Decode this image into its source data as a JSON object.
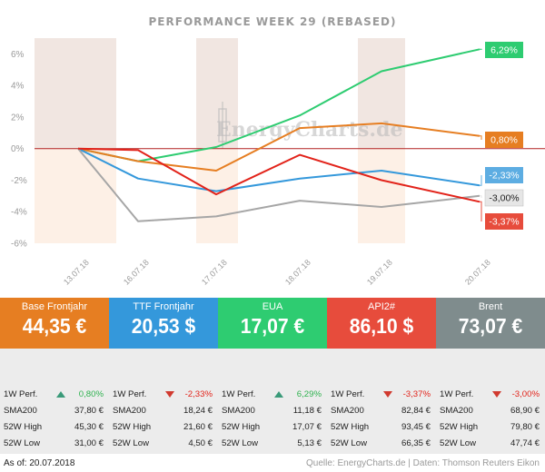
{
  "chart_data": {
    "type": "line",
    "title": "PERFORMANCE   WEEK 29 (REBASED)",
    "x": [
      "13.07.18",
      "16.07.18",
      "17.07.18",
      "18.07.18",
      "19.07.18",
      "20.07.18"
    ],
    "ylim": [
      -6,
      7
    ],
    "yticks": [
      6,
      4,
      2,
      0,
      -2,
      -4,
      -6
    ],
    "ytick_labels": [
      "6%",
      "4%",
      "2%",
      "0%",
      "-2%",
      "-4%",
      "-6%"
    ],
    "grid": false,
    "series": [
      {
        "name": "EUA",
        "color": "#2ecc71",
        "values": [
          0,
          -0.8,
          0.1,
          2.1,
          4.9,
          6.29
        ],
        "end_label": "6,29%"
      },
      {
        "name": "Base Frontjahr",
        "color": "#e67e22",
        "values": [
          0,
          -0.8,
          -1.4,
          1.3,
          1.6,
          0.8
        ],
        "end_label": "0,80%"
      },
      {
        "name": "TTF Frontjahr",
        "color": "#3498db",
        "values": [
          0,
          -1.9,
          -2.7,
          -1.9,
          -1.4,
          -2.33
        ],
        "end_label": "-2,33%"
      },
      {
        "name": "Brent",
        "color": "#a6a6a6",
        "values": [
          0,
          -4.6,
          -4.3,
          -3.3,
          -3.7,
          -3.0
        ],
        "end_label": "-3,00%"
      },
      {
        "name": "API2#",
        "color": "#e2231a",
        "values": [
          0,
          -0.1,
          -2.9,
          -0.4,
          -2.0,
          -3.37
        ],
        "end_label": "-3,37%"
      }
    ],
    "label_colors": {
      "EUA": "#2ecc71",
      "Base Frontjahr": "#e67e22",
      "TTF Frontjahr": "#5dade2",
      "Brent": "#e6e6e6",
      "API2#": "#e74c3c"
    },
    "label_text_colors": {
      "EUA": "#ffffff",
      "Base Frontjahr": "#ffffff",
      "TTF Frontjahr": "#ffffff",
      "Brent": "#222222",
      "API2#": "#ffffff"
    }
  },
  "watermark": "EnergyCharts.de",
  "tiles": [
    {
      "name": "Base Frontjahr",
      "price": "44,35 €",
      "color": "#e67e22"
    },
    {
      "name": "TTF Frontjahr",
      "price": "20,53 $",
      "color": "#3498db"
    },
    {
      "name": "EUA",
      "price": "17,07 €",
      "color": "#2ecc71"
    },
    {
      "name": "API2#",
      "price": "86,10 $",
      "color": "#e74c3c"
    },
    {
      "name": "Brent",
      "price": "73,07 €",
      "color": "#7f8c8d"
    }
  ],
  "table": [
    {
      "perf_label": "1W Perf.",
      "perf": "0,80%",
      "dir": "up",
      "sma_label": "SMA200",
      "sma": "37,80 €",
      "high_label": "52W High",
      "high": "45,30 €",
      "low_label": "52W Low",
      "low": "31,00 €"
    },
    {
      "perf_label": "1W Perf.",
      "perf": "-2,33%",
      "dir": "down",
      "sma_label": "SMA200",
      "sma": "18,24 €",
      "high_label": "52W High",
      "high": "21,60 €",
      "low_label": "52W Low",
      "low": "4,50 €"
    },
    {
      "perf_label": "1W Perf.",
      "perf": "6,29%",
      "dir": "up",
      "sma_label": "SMA200",
      "sma": "11,18 €",
      "high_label": "52W High",
      "high": "17,07 €",
      "low_label": "52W Low",
      "low": "5,13 €"
    },
    {
      "perf_label": "1W Perf.",
      "perf": "-3,37%",
      "dir": "down",
      "sma_label": "SMA200",
      "sma": "82,84 €",
      "high_label": "52W High",
      "high": "93,45 €",
      "low_label": "52W Low",
      "low": "66,35 €"
    },
    {
      "perf_label": "1W Perf.",
      "perf": "-3,00%",
      "dir": "down",
      "sma_label": "SMA200",
      "sma": "68,90 €",
      "high_label": "52W High",
      "high": "79,80 €",
      "low_label": "52W Low",
      "low": "47,74 €"
    }
  ],
  "footer": {
    "as_of": "As of: 20.07.2018",
    "source": "Quelle: EnergyCharts.de | Daten: Thomson Reuters Eikon"
  }
}
